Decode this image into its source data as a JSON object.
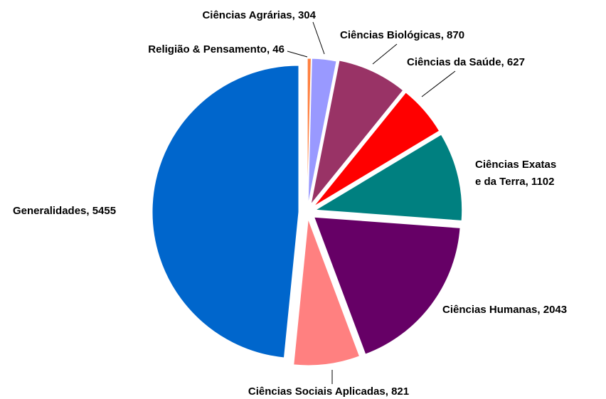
{
  "chart_data": {
    "type": "pie",
    "values": [
      46,
      304,
      870,
      627,
      1102,
      2043,
      821,
      5455
    ],
    "value_labels": [
      "Religião & Pensamento, 46",
      "Ciências Agrárias, 304",
      "Ciências Biológicas, 870",
      "Ciências da Saúde, 627",
      "Ciências Exatas\ne da Terra, 1102",
      "Ciências Humanas, 2043",
      "Ciências Sociais Aplicadas, 821",
      "Generalidades, 5455"
    ],
    "colors": [
      "#ff8040",
      "#9999ff",
      "#993366",
      "#ff0000",
      "#008080",
      "#660066",
      "#ff8080",
      "#0066cc"
    ]
  }
}
